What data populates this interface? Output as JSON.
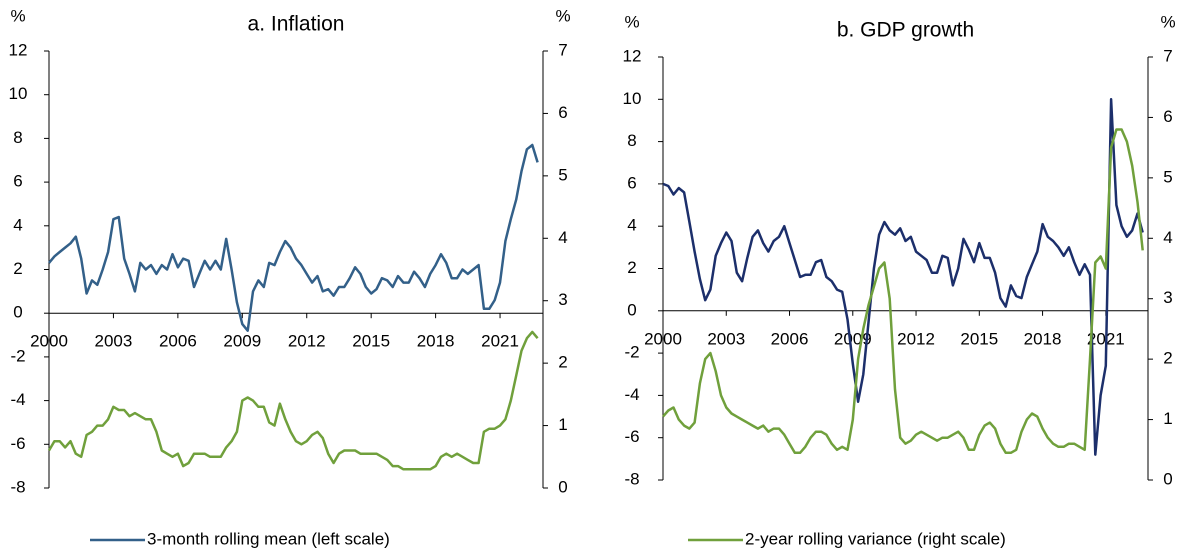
{
  "chart_data": [
    {
      "type": "line",
      "title": "a. Inflation",
      "y_label": "%",
      "y2_label": "%",
      "x": [
        2000,
        2000.25,
        2000.5,
        2000.75,
        2001,
        2001.25,
        2001.5,
        2001.75,
        2002,
        2002.25,
        2002.5,
        2002.75,
        2003,
        2003.25,
        2003.5,
        2003.75,
        2004,
        2004.25,
        2004.5,
        2004.75,
        2005,
        2005.25,
        2005.5,
        2005.75,
        2006,
        2006.25,
        2006.5,
        2006.75,
        2007,
        2007.25,
        2007.5,
        2007.75,
        2008,
        2008.25,
        2008.5,
        2008.75,
        2009,
        2009.25,
        2009.5,
        2009.75,
        2010,
        2010.25,
        2010.5,
        2010.75,
        2011,
        2011.25,
        2011.5,
        2011.75,
        2012,
        2012.25,
        2012.5,
        2012.75,
        2013,
        2013.25,
        2013.5,
        2013.75,
        2014,
        2014.25,
        2014.5,
        2014.75,
        2015,
        2015.25,
        2015.5,
        2015.75,
        2016,
        2016.25,
        2016.5,
        2016.75,
        2017,
        2017.25,
        2017.5,
        2017.75,
        2018,
        2018.25,
        2018.5,
        2018.75,
        2019,
        2019.25,
        2019.5,
        2019.75,
        2020,
        2020.25,
        2020.5,
        2020.75,
        2021,
        2021.25,
        2021.5,
        2021.75,
        2022,
        2022.25,
        2022.5,
        2022.75
      ],
      "xlim": [
        2000,
        2023
      ],
      "xticks": [
        2000,
        2003,
        2006,
        2009,
        2012,
        2015,
        2018,
        2021
      ],
      "ylim": [
        -8,
        12
      ],
      "yticks": [
        -8,
        -6,
        -4,
        -2,
        0,
        2,
        4,
        6,
        8,
        10,
        12
      ],
      "y2lim": [
        0,
        7
      ],
      "y2ticks": [
        0,
        1,
        2,
        3,
        4,
        5,
        6,
        7
      ],
      "series": [
        {
          "name": "3-month rolling mean (left scale)",
          "color": "#336089",
          "values": [
            2.3,
            2.6,
            2.8,
            3.0,
            3.2,
            3.5,
            2.5,
            0.9,
            1.5,
            1.3,
            2.0,
            2.8,
            4.3,
            4.4,
            2.5,
            1.8,
            1.0,
            2.3,
            2.0,
            2.2,
            1.8,
            2.2,
            2.0,
            2.7,
            2.1,
            2.5,
            2.4,
            1.2,
            1.8,
            2.4,
            2.0,
            2.4,
            2.0,
            3.4,
            2.0,
            0.5,
            -0.5,
            -0.8,
            1.0,
            1.5,
            1.2,
            2.3,
            2.2,
            2.8,
            3.3,
            3.0,
            2.5,
            2.2,
            1.8,
            1.4,
            1.7,
            1.0,
            1.1,
            0.8,
            1.2,
            1.2,
            1.6,
            2.1,
            1.8,
            1.2,
            0.9,
            1.1,
            1.6,
            1.5,
            1.2,
            1.7,
            1.4,
            1.4,
            1.9,
            1.6,
            1.2,
            1.8,
            2.2,
            2.7,
            2.3,
            1.6,
            1.6,
            2.0,
            1.8,
            2.0,
            2.2,
            0.2,
            0.2,
            0.6,
            1.4,
            3.3,
            4.3,
            5.2,
            6.5,
            7.5,
            7.7,
            6.9
          ]
        },
        {
          "name": "2-year rolling variance (right scale)",
          "color": "#70a03c",
          "axis": "y2",
          "values": [
            0.6,
            0.75,
            0.75,
            0.65,
            0.75,
            0.55,
            0.5,
            0.85,
            0.9,
            1.0,
            1.0,
            1.1,
            1.3,
            1.25,
            1.25,
            1.15,
            1.2,
            1.15,
            1.1,
            1.1,
            0.9,
            0.6,
            0.55,
            0.5,
            0.55,
            0.35,
            0.4,
            0.55,
            0.55,
            0.55,
            0.5,
            0.5,
            0.5,
            0.65,
            0.75,
            0.9,
            1.4,
            1.45,
            1.4,
            1.3,
            1.3,
            1.05,
            1.0,
            1.35,
            1.1,
            0.9,
            0.75,
            0.7,
            0.75,
            0.85,
            0.9,
            0.8,
            0.55,
            0.4,
            0.55,
            0.6,
            0.6,
            0.6,
            0.55,
            0.55,
            0.55,
            0.55,
            0.5,
            0.45,
            0.35,
            0.35,
            0.3,
            0.3,
            0.3,
            0.3,
            0.3,
            0.3,
            0.35,
            0.5,
            0.55,
            0.5,
            0.55,
            0.5,
            0.45,
            0.4,
            0.4,
            0.9,
            0.95,
            0.95,
            1.0,
            1.1,
            1.4,
            1.8,
            2.2,
            2.4,
            2.5,
            2.4
          ]
        }
      ]
    },
    {
      "type": "line",
      "title": "b. GDP growth",
      "y_label": "%",
      "y2_label": "%",
      "x": [
        2000,
        2000.25,
        2000.5,
        2000.75,
        2001,
        2001.25,
        2001.5,
        2001.75,
        2002,
        2002.25,
        2002.5,
        2002.75,
        2003,
        2003.25,
        2003.5,
        2003.75,
        2004,
        2004.25,
        2004.5,
        2004.75,
        2005,
        2005.25,
        2005.5,
        2005.75,
        2006,
        2006.25,
        2006.5,
        2006.75,
        2007,
        2007.25,
        2007.5,
        2007.75,
        2008,
        2008.25,
        2008.5,
        2008.75,
        2009,
        2009.25,
        2009.5,
        2009.75,
        2010,
        2010.25,
        2010.5,
        2010.75,
        2011,
        2011.25,
        2011.5,
        2011.75,
        2012,
        2012.25,
        2012.5,
        2012.75,
        2013,
        2013.25,
        2013.5,
        2013.75,
        2014,
        2014.25,
        2014.5,
        2014.75,
        2015,
        2015.25,
        2015.5,
        2015.75,
        2016,
        2016.25,
        2016.5,
        2016.75,
        2017,
        2017.25,
        2017.5,
        2017.75,
        2018,
        2018.25,
        2018.5,
        2018.75,
        2019,
        2019.25,
        2019.5,
        2019.75,
        2020,
        2020.25,
        2020.5,
        2020.75,
        2021,
        2021.25,
        2021.5,
        2021.75,
        2022,
        2022.25,
        2022.5,
        2022.75
      ],
      "xlim": [
        2000,
        2023
      ],
      "xticks": [
        2000,
        2003,
        2006,
        2009,
        2012,
        2015,
        2018,
        2021
      ],
      "ylim": [
        -8,
        12
      ],
      "yticks": [
        -8,
        -6,
        -4,
        -2,
        0,
        2,
        4,
        6,
        8,
        10,
        12
      ],
      "y2lim": [
        0,
        7
      ],
      "y2ticks": [
        0,
        1,
        2,
        3,
        4,
        5,
        6,
        7
      ],
      "series": [
        {
          "color": "#1c2f6b",
          "values": [
            6.0,
            5.9,
            5.5,
            5.8,
            5.6,
            4.2,
            2.8,
            1.5,
            0.5,
            1.0,
            2.6,
            3.2,
            3.7,
            3.3,
            1.8,
            1.4,
            2.5,
            3.5,
            3.8,
            3.2,
            2.8,
            3.3,
            3.5,
            4.0,
            3.2,
            2.4,
            1.6,
            1.7,
            1.7,
            2.3,
            2.4,
            1.6,
            1.4,
            1.0,
            0.9,
            -0.4,
            -2.5,
            -4.3,
            -3.0,
            -0.5,
            2.0,
            3.6,
            4.2,
            3.8,
            3.6,
            3.9,
            3.3,
            3.5,
            2.8,
            2.6,
            2.4,
            1.8,
            1.8,
            2.6,
            2.5,
            1.2,
            2.0,
            3.4,
            2.9,
            2.3,
            3.2,
            2.5,
            2.5,
            1.8,
            0.6,
            0.2,
            1.2,
            0.7,
            0.6,
            1.6,
            2.2,
            2.8,
            4.1,
            3.5,
            3.3,
            3.0,
            2.6,
            3.0,
            2.3,
            1.7,
            2.2,
            1.7,
            -6.8,
            -4.0,
            -2.6,
            10.0,
            5.0,
            4.0,
            3.5,
            3.8,
            4.6,
            3.7
          ]
        },
        {
          "color": "#70a03c",
          "axis": "y2",
          "values": [
            1.05,
            1.15,
            1.2,
            1.0,
            0.9,
            0.85,
            0.95,
            1.6,
            2.0,
            2.1,
            1.8,
            1.4,
            1.2,
            1.1,
            1.05,
            1.0,
            0.95,
            0.9,
            0.85,
            0.9,
            0.8,
            0.85,
            0.85,
            0.75,
            0.6,
            0.45,
            0.45,
            0.55,
            0.7,
            0.8,
            0.8,
            0.75,
            0.6,
            0.5,
            0.55,
            0.5,
            1.0,
            2.0,
            2.5,
            2.9,
            3.2,
            3.5,
            3.6,
            3.0,
            1.5,
            0.7,
            0.6,
            0.65,
            0.75,
            0.8,
            0.75,
            0.7,
            0.65,
            0.7,
            0.7,
            0.75,
            0.8,
            0.7,
            0.5,
            0.5,
            0.75,
            0.9,
            0.95,
            0.85,
            0.6,
            0.45,
            0.45,
            0.5,
            0.8,
            1.0,
            1.1,
            1.05,
            0.85,
            0.7,
            0.6,
            0.55,
            0.55,
            0.6,
            0.6,
            0.55,
            0.5,
            2.0,
            3.6,
            3.7,
            3.5,
            5.5,
            5.8,
            5.8,
            5.6,
            5.2,
            4.6,
            3.8
          ]
        }
      ]
    }
  ]
}
